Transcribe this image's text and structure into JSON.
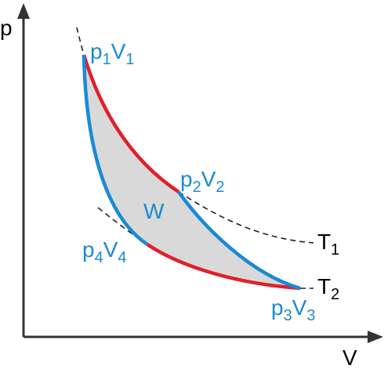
{
  "axes": {
    "y_label": "p",
    "x_label": "V"
  },
  "points": [
    {
      "p": "p",
      "p_sub": "1",
      "v": "V",
      "v_sub": "1"
    },
    {
      "p": "p",
      "p_sub": "2",
      "v": "V",
      "v_sub": "2"
    },
    {
      "p": "p",
      "p_sub": "3",
      "v": "V",
      "v_sub": "3"
    },
    {
      "p": "p",
      "p_sub": "4",
      "v": "V",
      "v_sub": "4"
    }
  ],
  "work_label": "W",
  "isotherms": [
    {
      "name": "T",
      "sub": "1"
    },
    {
      "name": "T",
      "sub": "2"
    }
  ]
}
